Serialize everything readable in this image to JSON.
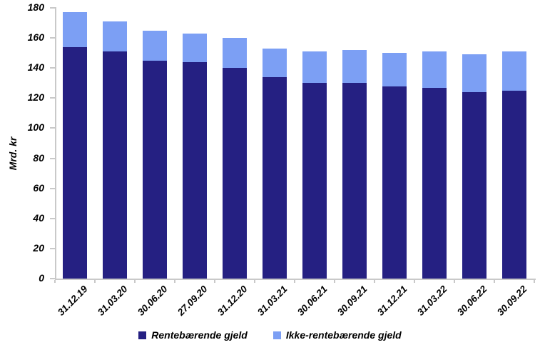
{
  "chart_data": {
    "type": "bar",
    "stacked": true,
    "title": "",
    "ylabel": "Mrd. kr",
    "xlabel": "",
    "ylim": [
      0,
      180
    ],
    "yticks": [
      0,
      20,
      40,
      60,
      80,
      100,
      120,
      140,
      160,
      180
    ],
    "grid": false,
    "legend_position": "bottom",
    "axis_color": "#C9C9C9",
    "text_color": "#000000",
    "categories": [
      "31.12.19",
      "31.03.20",
      "30.06.20",
      "27.09.20",
      "31.12.20",
      "31.03.21",
      "30.06.21",
      "30.09.21",
      "31.12.21",
      "31.03.22",
      "30.06.22",
      "30.09.22"
    ],
    "series": [
      {
        "name": "Rentebærende gjeld",
        "color": "#252082",
        "values": [
          154,
          151,
          145,
          144,
          140,
          134,
          130,
          130,
          128,
          127,
          124,
          125
        ]
      },
      {
        "name": "Ikke-rentebærende gjeld",
        "color": "#7C9FF4",
        "values": [
          23,
          20,
          20,
          19,
          20,
          19,
          21,
          22,
          22,
          24,
          25,
          26
        ]
      }
    ]
  }
}
